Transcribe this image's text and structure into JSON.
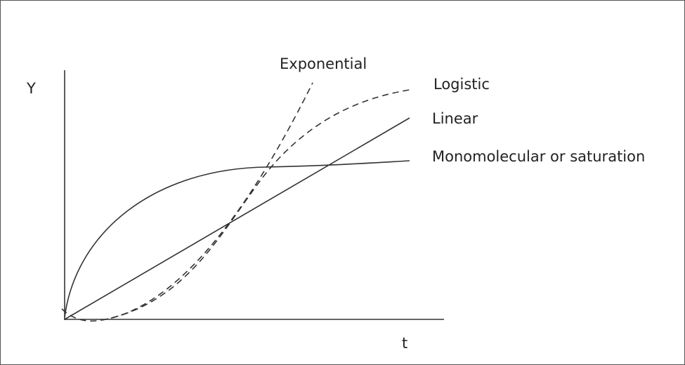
{
  "axes": {
    "y_label": "Y",
    "x_label": "t"
  },
  "curves": [
    {
      "label": "Exponential"
    },
    {
      "label": "Logistic"
    },
    {
      "label": "Linear"
    },
    {
      "label": "Monomolecular or saturation"
    }
  ]
}
